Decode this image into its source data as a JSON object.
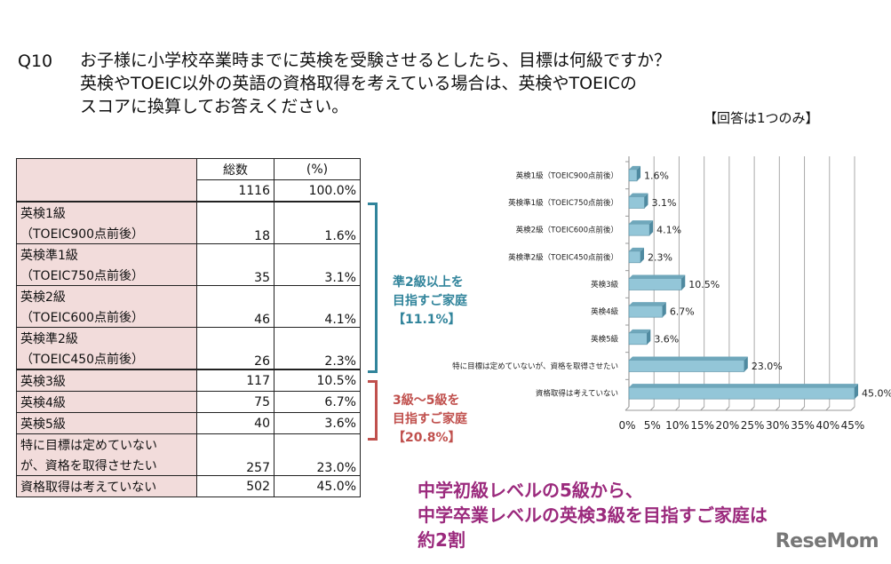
{
  "question": {
    "number": "Q10",
    "lines": [
      "お子様に小学校卒業時までに英検を受験させるとしたら、目標は何級ですか？",
      "英検やTOEIC以外の英語の資格取得を考えている場合は、英検やTOEICの",
      "スコアに換算してお答えください。"
    ],
    "note": "【回答は1つのみ】"
  },
  "table": {
    "headers": [
      "",
      "総数",
      "(%)"
    ],
    "total": {
      "count": "1116",
      "pct": "100.0%"
    },
    "rows": [
      {
        "label": [
          "英検1級",
          "（TOEIC900点前後）"
        ],
        "count": "18",
        "pct": "1.6%"
      },
      {
        "label": [
          "英検準1級",
          "（TOEIC750点前後）"
        ],
        "count": "35",
        "pct": "3.1%"
      },
      {
        "label": [
          "英検2級",
          "（TOEIC600点前後）"
        ],
        "count": "46",
        "pct": "4.1%"
      },
      {
        "label": [
          "英検準2級",
          "（TOEIC450点前後）"
        ],
        "count": "26",
        "pct": "2.3%"
      },
      {
        "label": [
          "英検3級"
        ],
        "count": "117",
        "pct": "10.5%"
      },
      {
        "label": [
          "英検4級"
        ],
        "count": "75",
        "pct": "6.7%"
      },
      {
        "label": [
          "英検5級"
        ],
        "count": "40",
        "pct": "3.6%"
      },
      {
        "label": [
          "特に目標は定めていない",
          "が、資格を取得させたい"
        ],
        "count": "257",
        "pct": "23.0%"
      },
      {
        "label": [
          "資格取得は考えていない"
        ],
        "count": "502",
        "pct": "45.0%"
      }
    ]
  },
  "annotations": [
    {
      "lines": [
        "準2級以上を",
        "目指すご家庭",
        "【11.1%】"
      ],
      "color": "#31849b"
    },
    {
      "lines": [
        "3級～5級を",
        "目指すご家庭",
        "【20.8%】"
      ],
      "color": "#c0504d"
    }
  ],
  "conclusion": [
    "中学初級レベルの5級から、",
    "中学卒業レベルの英検3級を目指すご家庭は",
    "約2割"
  ],
  "logo": "ReseMom",
  "chart_data": {
    "type": "bar",
    "orientation": "horizontal",
    "categories": [
      "英検1級（TOEIC900点前後）",
      "英検準1級（TOEIC750点前後）",
      "英検2級（TOEIC600点前後）",
      "英検準2級（TOEIC450点前後）",
      "英検3級",
      "英検4級",
      "英検5級",
      "特に目標は定めていないが、資格を取得させたい",
      "資格取得は考えていない"
    ],
    "values": [
      1.6,
      3.1,
      4.1,
      2.3,
      10.5,
      6.7,
      3.6,
      23.0,
      45.0
    ],
    "data_labels": [
      "1.6%",
      "3.1%",
      "4.1%",
      "2.3%",
      "10.5%",
      "6.7%",
      "3.6%",
      "23.0%",
      "45.0%"
    ],
    "xlim": [
      0,
      45
    ],
    "ticks": [
      "0%",
      "5%",
      "10%",
      "15%",
      "20%",
      "25%",
      "30%",
      "35%",
      "40%",
      "45%"
    ],
    "grid": true,
    "bar_color": "#93c6d8"
  }
}
